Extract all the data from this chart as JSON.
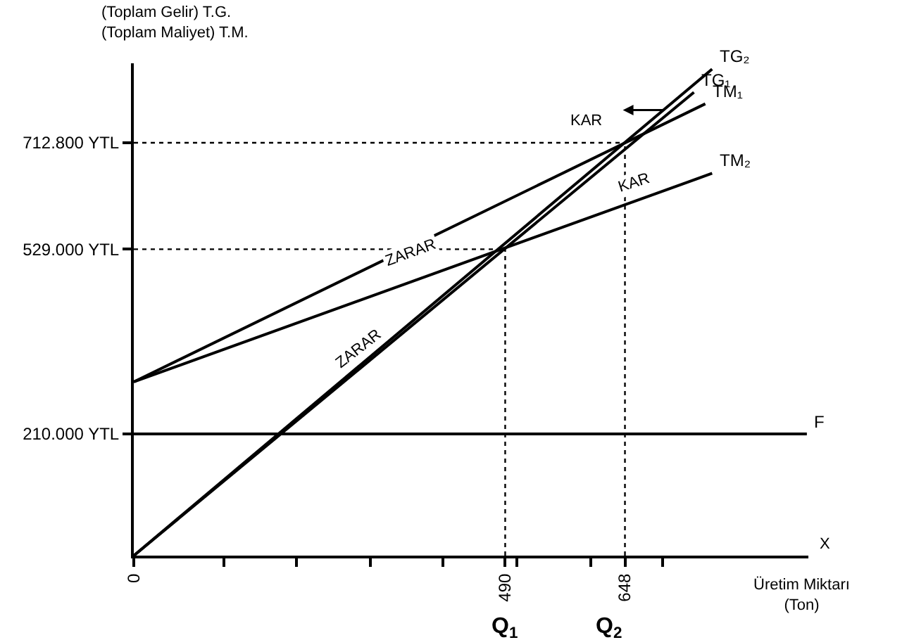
{
  "chart_data": {
    "type": "line",
    "xlabel": "Üretim Miktarı\n(Ton)",
    "ylabel": "(Toplam Gelir) T.G.\n(Toplam Maliyet) T.M.",
    "xlim": [
      0,
      890
    ],
    "ylim": [
      0,
      850000
    ],
    "xticks": [
      0,
      {
        "value": 119,
        "label": null
      },
      {
        "value": 215,
        "label": null
      },
      {
        "value": 312,
        "label": null
      },
      {
        "value": 408,
        "label": null
      },
      490,
      {
        "value": 505,
        "label": null
      },
      {
        "value": 603,
        "label": null
      },
      648,
      {
        "value": 698,
        "label": null
      }
    ],
    "yticks": [
      {
        "value": 210000,
        "label": "210.000 YTL"
      },
      {
        "value": 529000,
        "label": "529.000 YTL"
      },
      {
        "value": 712800,
        "label": "712.800 YTL"
      }
    ],
    "legend": false,
    "marker": "none",
    "series": [
      {
        "name": "TG₁",
        "color": "#000000",
        "x": [
          0,
          739
        ],
        "values": [
          0,
          800000
        ]
      },
      {
        "name": "TG₂",
        "color": "#000000",
        "x": [
          0,
          763
        ],
        "values": [
          0,
          840000
        ]
      },
      {
        "name": "TM₁",
        "color": "#000000",
        "x": [
          0,
          754
        ],
        "values": [
          300000,
          780000
        ]
      },
      {
        "name": "TM₂",
        "color": "#000000",
        "x": [
          0,
          763
        ],
        "values": [
          300000,
          660000
        ]
      },
      {
        "name": "F",
        "color": "#000000",
        "x": [
          0,
          888
        ],
        "values": [
          210000,
          210000
        ]
      },
      {
        "color": "#000000",
        "line_style": "dotted",
        "x": [
          0,
          490
        ],
        "values": [
          529000,
          529000
        ]
      },
      {
        "color": "#000000",
        "line_style": "dotted",
        "x": [
          490,
          490
        ],
        "values": [
          0,
          529000
        ]
      },
      {
        "color": "#000000",
        "line_style": "dotted",
        "x": [
          0,
          648
        ],
        "values": [
          712800,
          712800
        ]
      },
      {
        "color": "#000000",
        "line_style": "dotted",
        "x": [
          648,
          648
        ],
        "values": [
          0,
          712800
        ]
      }
    ],
    "annotations": [
      "KAR",
      "KAR",
      "ZARAR",
      "ZARAR",
      "X",
      "Q$_{1}$",
      "Q$_{2}$"
    ]
  }
}
